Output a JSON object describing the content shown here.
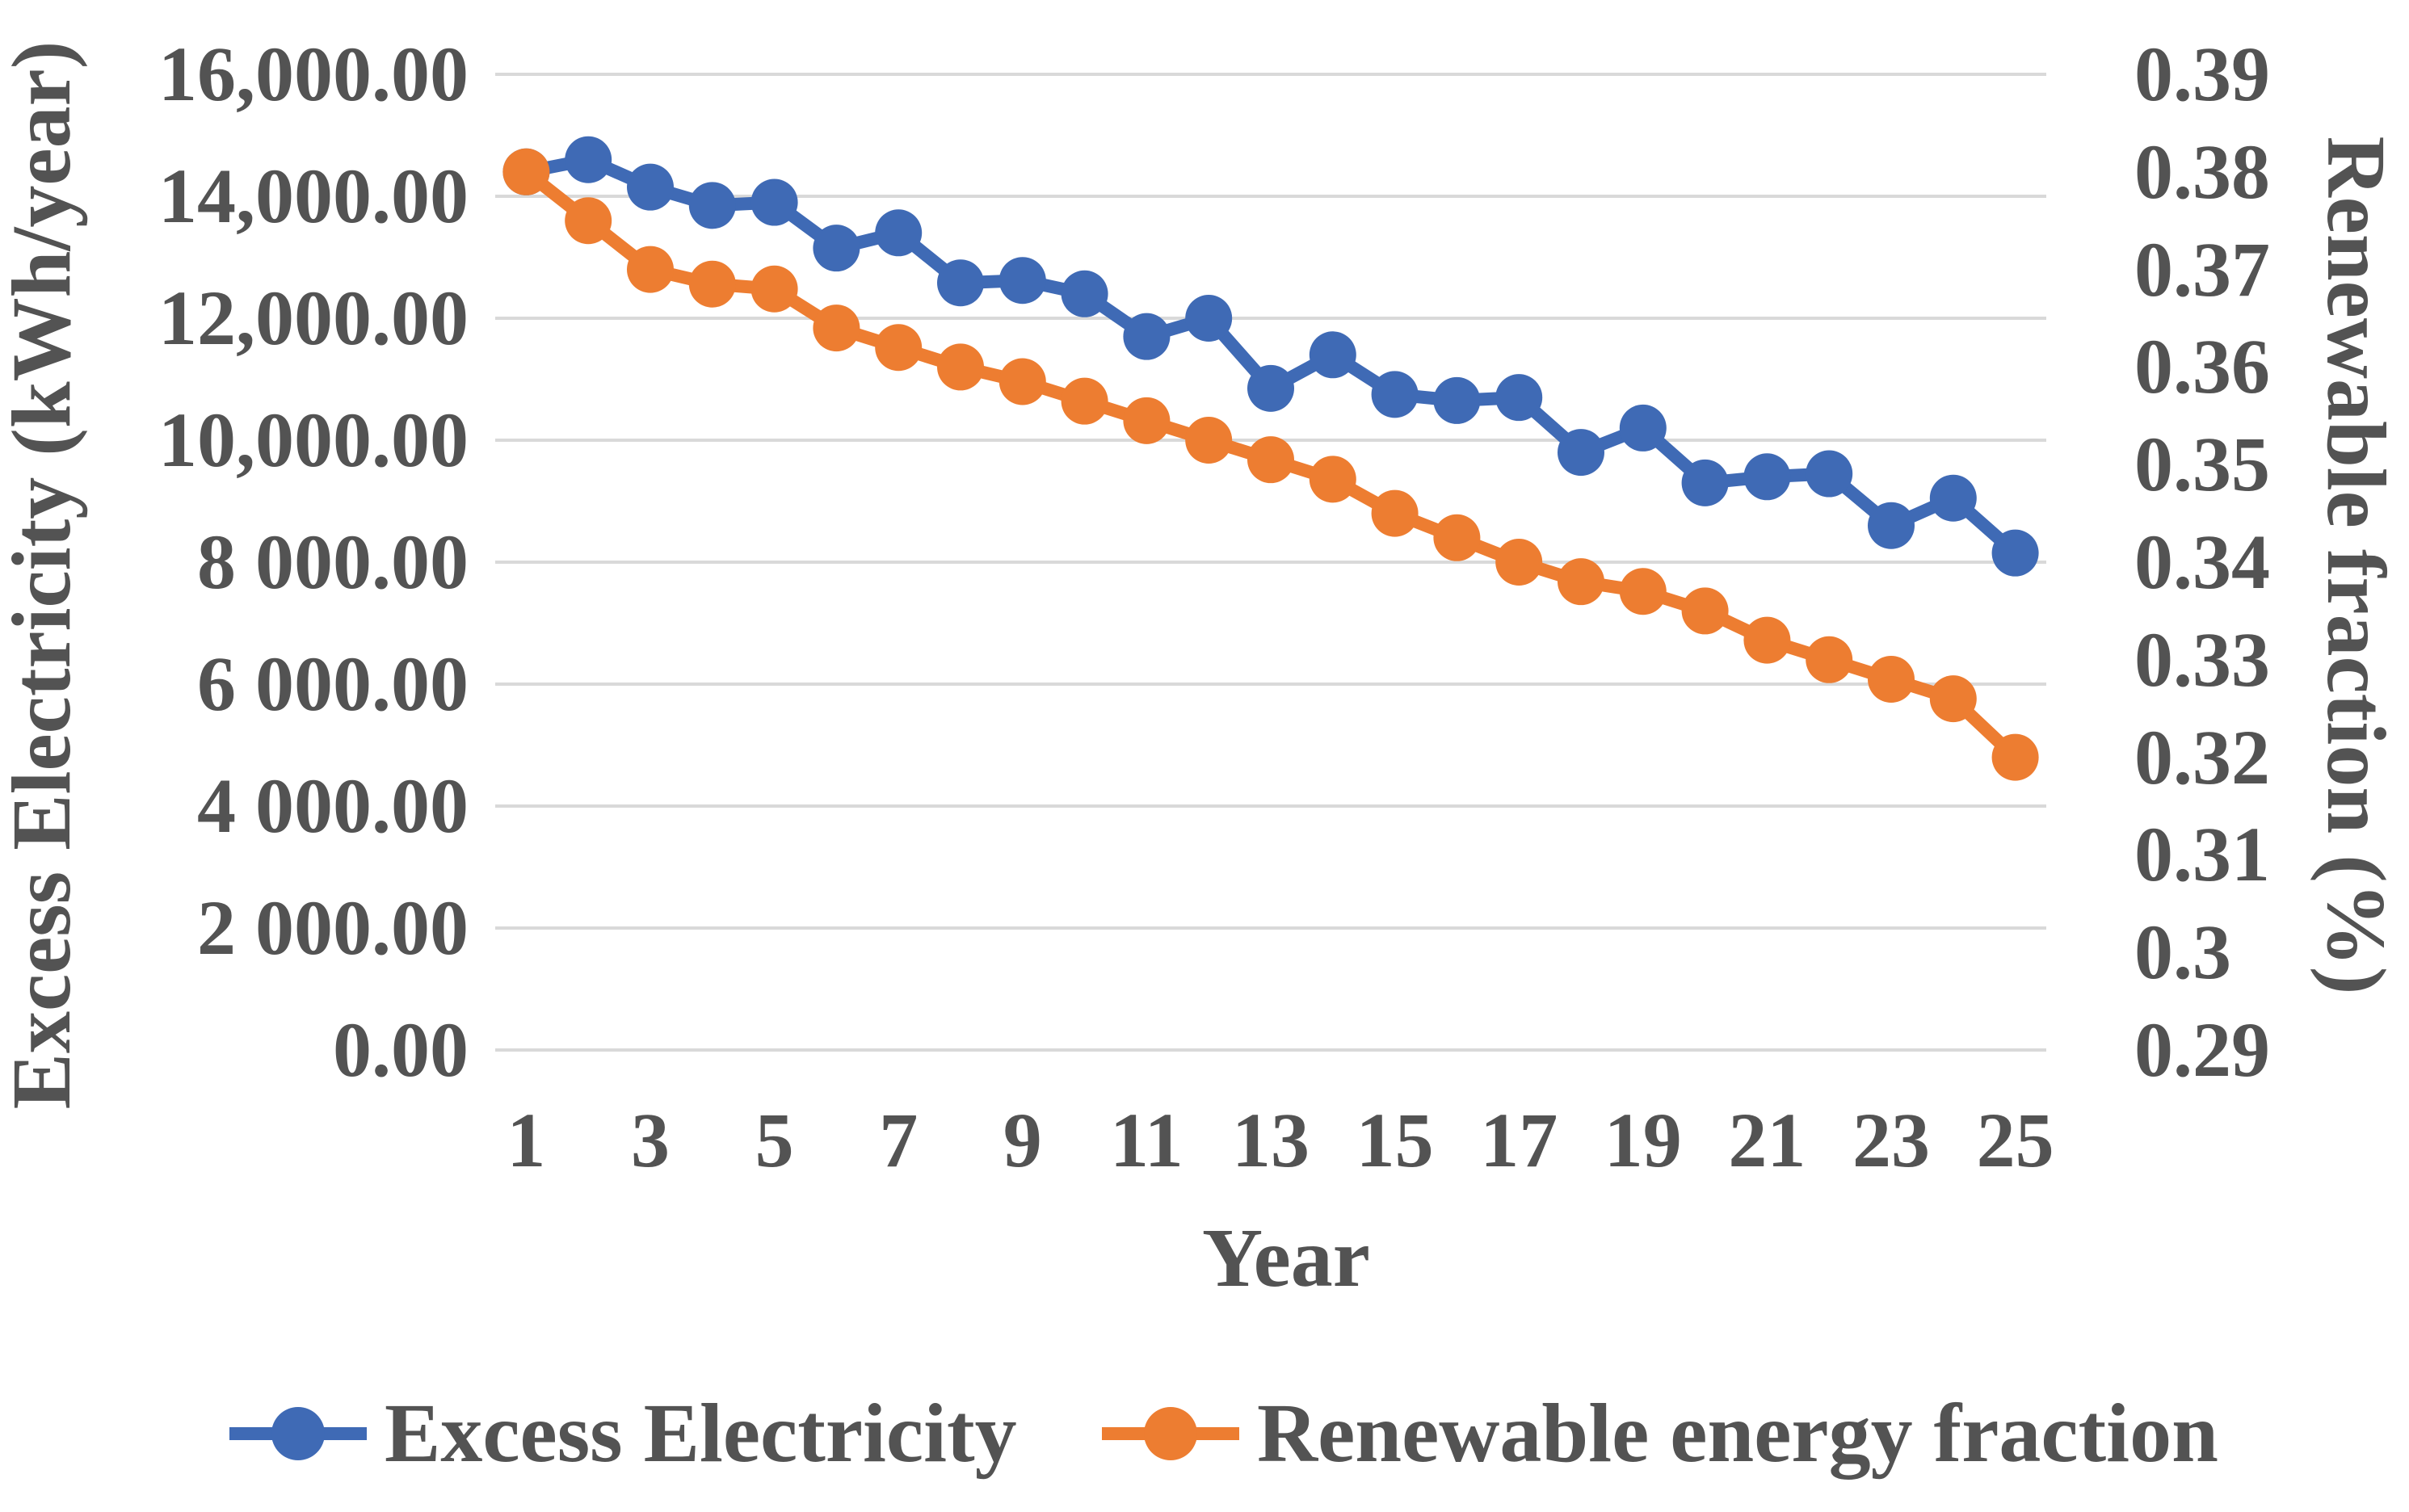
{
  "figure": {
    "background": "#ffffff",
    "text_color": "#535353",
    "grid_color": "#D9D9D9"
  },
  "chart_data": {
    "type": "line",
    "title": "",
    "xlabel": "Year",
    "grid": true,
    "legend_position": "bottom",
    "x": [
      1,
      2,
      3,
      4,
      5,
      6,
      7,
      8,
      9,
      10,
      11,
      12,
      13,
      14,
      15,
      16,
      17,
      18,
      19,
      20,
      21,
      22,
      23,
      24,
      25
    ],
    "x_tick_labels": [
      "1",
      "3",
      "5",
      "7",
      "9",
      "11",
      "13",
      "15",
      "17",
      "19",
      "21",
      "23",
      "25"
    ],
    "left_axis": {
      "title": "Excess Electricity (kWh/year)",
      "min": 0,
      "max": 16000,
      "tick_step": 2000,
      "tick_labels": [
        "16,000.00",
        "14,000.00",
        "12,000.00",
        "10,000.00",
        "8 000.00",
        "6 000.00",
        "4 000.00",
        "2 000.00",
        "0.00"
      ]
    },
    "right_axis": {
      "title": "Renewable fraction (%)",
      "min": 0.29,
      "max": 0.39,
      "tick_step": 0.01,
      "tick_labels": [
        "0.39",
        "0.38",
        "0.37",
        "0.36",
        "0.35",
        "0.34",
        "0.33",
        "0.32",
        "0.31",
        "0.3",
        "0.29"
      ]
    },
    "series": [
      {
        "name": "Excess Electricity",
        "axis": "left",
        "color": "#3F6AB5",
        "values": [
          14400,
          14600,
          14150,
          13850,
          13900,
          13150,
          13400,
          12580,
          12620,
          12400,
          11700,
          12000,
          10850,
          11400,
          10750,
          10650,
          10700,
          9800,
          10200,
          9300,
          9400,
          9450,
          8600,
          9050,
          8150
        ]
      },
      {
        "name": "Renewable energy fraction",
        "axis": "right",
        "color": "#ED7D31",
        "values": [
          0.38,
          0.375,
          0.37,
          0.3685,
          0.368,
          0.364,
          0.362,
          0.36,
          0.3585,
          0.3565,
          0.3545,
          0.3525,
          0.3505,
          0.3485,
          0.345,
          0.3425,
          0.34,
          0.338,
          0.337,
          0.335,
          0.332,
          0.33,
          0.328,
          0.326,
          0.32
        ]
      }
    ]
  }
}
